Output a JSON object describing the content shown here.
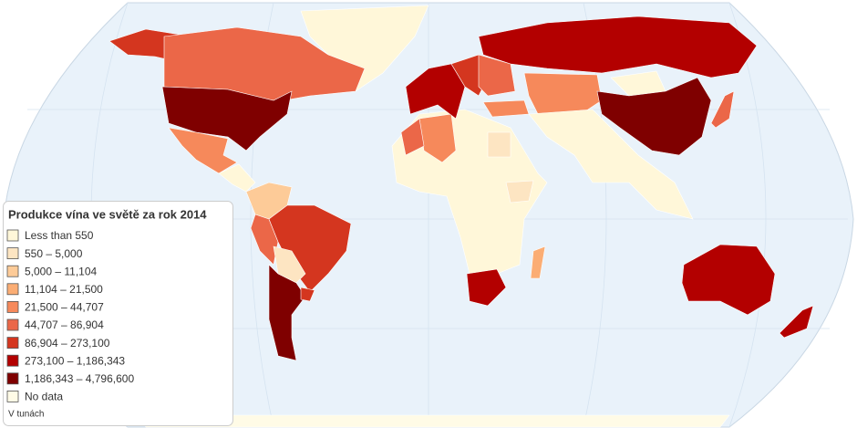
{
  "legend": {
    "title": "Produkce vína ve světě za rok 2014",
    "items": [
      {
        "label": "Less than 550",
        "color": "#fff7d9"
      },
      {
        "label": "550 – 5,000",
        "color": "#fde5c2"
      },
      {
        "label": "5,000 – 11,104",
        "color": "#fdcb98"
      },
      {
        "label": "11,104 – 21,500",
        "color": "#fbad74"
      },
      {
        "label": "21,500 – 44,707",
        "color": "#f6895b"
      },
      {
        "label": "44,707 – 86,904",
        "color": "#eb6748"
      },
      {
        "label": "86,904 – 273,100",
        "color": "#d4361f"
      },
      {
        "label": "273,100 – 1,186,343",
        "color": "#b30000"
      },
      {
        "label": "1,186,343 – 4,796,600",
        "color": "#7f0000"
      },
      {
        "label": "No data",
        "color": "#fffbe6"
      }
    ],
    "note": "V tunách"
  }
}
